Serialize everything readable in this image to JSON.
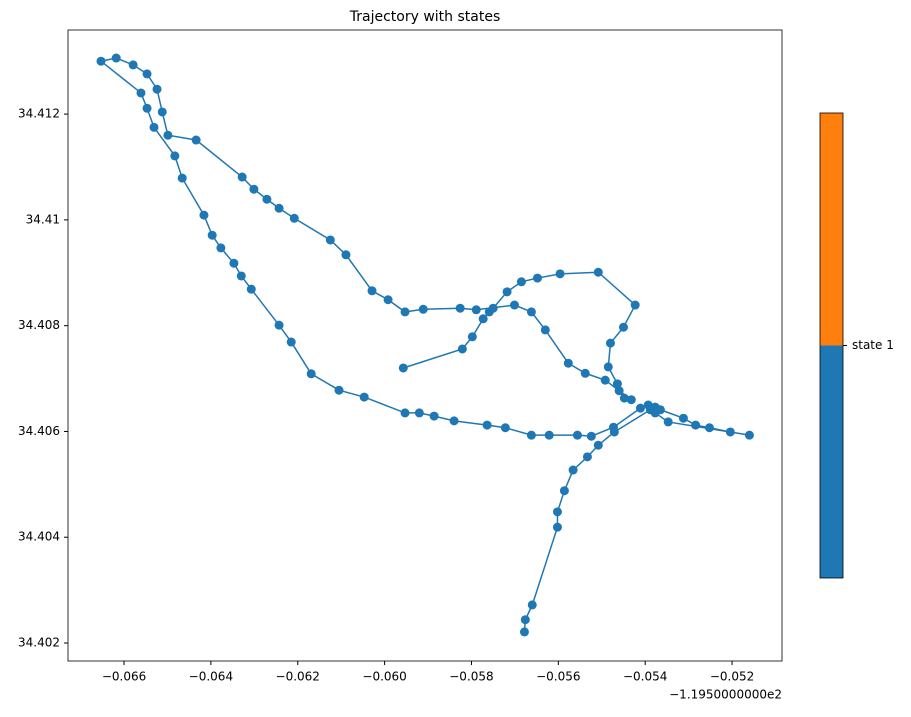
{
  "chart_data": {
    "type": "line",
    "title": "Trajectory with states",
    "x_offset_label": "−1.1950000000e2",
    "x": [
      -0.05957,
      -0.05821,
      -0.05798,
      -0.05773,
      -0.05759,
      -0.0575,
      -0.05718,
      -0.05685,
      -0.05648,
      -0.05596,
      -0.05508,
      -0.05423,
      -0.0545,
      -0.0548,
      -0.05485,
      -0.05464,
      -0.0546,
      -0.05448,
      -0.05432,
      -0.05492,
      -0.05538,
      -0.05577,
      -0.0563,
      -0.05662,
      -0.05701,
      -0.05789,
      -0.05826,
      -0.05911,
      -0.05953,
      -0.05992,
      -0.06029,
      -0.06089,
      -0.06125,
      -0.06208,
      -0.06243,
      -0.06271,
      -0.06301,
      -0.06328,
      -0.06434,
      -0.06499,
      -0.06512,
      -0.06524,
      -0.06547,
      -0.06579,
      -0.06618,
      -0.06653,
      -0.06561,
      -0.06547,
      -0.06531,
      -0.06483,
      -0.06466,
      -0.06416,
      -0.06397,
      -0.06377,
      -0.06347,
      -0.0633,
      -0.06307,
      -0.06243,
      -0.06215,
      -0.06169,
      -0.06105,
      -0.06047,
      -0.05953,
      -0.0592,
      -0.05886,
      -0.0584,
      -0.05764,
      -0.05722,
      -0.05662,
      -0.05621,
      -0.05556,
      -0.05524,
      -0.05473,
      -0.05411,
      -0.05393,
      -0.05377,
      -0.05365,
      -0.05312,
      -0.05284,
      -0.05252,
      -0.05204,
      -0.0516,
      -0.05347,
      -0.05377,
      -0.05388,
      -0.05471,
      -0.05508,
      -0.05533,
      -0.05566,
      -0.05586,
      -0.05602,
      -0.05602,
      -0.0566,
      -0.05676,
      -0.05678
    ],
    "series": [
      {
        "color": "#1f77b4",
        "values": [
          34.4072,
          34.40756,
          34.40779,
          34.40813,
          34.40826,
          34.40833,
          34.40864,
          34.40883,
          34.4089,
          34.40898,
          34.40901,
          34.40839,
          34.40797,
          34.40767,
          34.40722,
          34.4069,
          34.40677,
          34.40663,
          34.4066,
          34.40697,
          34.4071,
          34.40729,
          34.40792,
          34.40826,
          34.40839,
          34.4083,
          34.40833,
          34.40831,
          34.40826,
          34.40849,
          34.40866,
          34.40934,
          34.40962,
          34.41003,
          34.41022,
          34.41039,
          34.41058,
          34.41081,
          34.41151,
          34.4116,
          34.41204,
          34.41247,
          34.41276,
          34.41293,
          34.41306,
          34.413,
          34.4124,
          34.41211,
          34.41175,
          34.41121,
          34.41079,
          34.41009,
          34.40971,
          34.40947,
          34.40918,
          34.40894,
          34.40869,
          34.40801,
          34.40769,
          34.40709,
          34.40678,
          34.40665,
          34.40635,
          34.40635,
          34.40629,
          34.4062,
          34.40612,
          34.40607,
          34.40593,
          34.40593,
          34.40593,
          34.40591,
          34.40608,
          34.40644,
          34.4065,
          34.40646,
          34.40641,
          34.40625,
          34.40612,
          34.40607,
          34.40599,
          34.40593,
          34.40618,
          34.40635,
          34.40641,
          34.40599,
          34.40574,
          34.40552,
          34.40527,
          34.40488,
          34.40448,
          34.40419,
          34.40272,
          34.40244,
          34.40221
        ]
      }
    ],
    "xlim": [
      -0.06729,
      -0.05085
    ],
    "ylim": [
      34.40166,
      34.41359
    ],
    "xticks": [
      {
        "value": -0.066,
        "label": "−0.066"
      },
      {
        "value": -0.064,
        "label": "−0.064"
      },
      {
        "value": -0.062,
        "label": "−0.062"
      },
      {
        "value": -0.06,
        "label": "−0.060"
      },
      {
        "value": -0.058,
        "label": "−0.058"
      },
      {
        "value": -0.056,
        "label": "−0.056"
      },
      {
        "value": -0.054,
        "label": "−0.054"
      },
      {
        "value": -0.052,
        "label": "−0.052"
      }
    ],
    "yticks": [
      34.402,
      34.404,
      34.406,
      34.408,
      34.41,
      34.412
    ],
    "colorbar": {
      "colors": [
        "#1f77b4",
        "#ff7f0e"
      ],
      "lim": [
        0,
        2
      ],
      "ticks": [
        {
          "value": 1,
          "label": "state 1"
        }
      ]
    }
  }
}
